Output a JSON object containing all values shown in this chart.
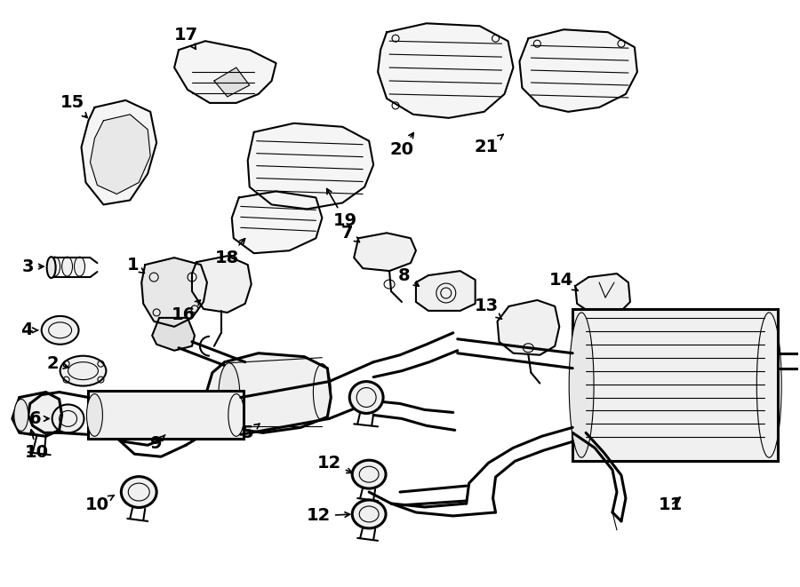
{
  "background_color": "#ffffff",
  "line_color": "#000000",
  "text_color": "#000000",
  "fig_width": 9.0,
  "fig_height": 6.61,
  "dpi": 100,
  "lw": 1.5,
  "lw_thin": 0.8,
  "lw_thick": 2.2
}
